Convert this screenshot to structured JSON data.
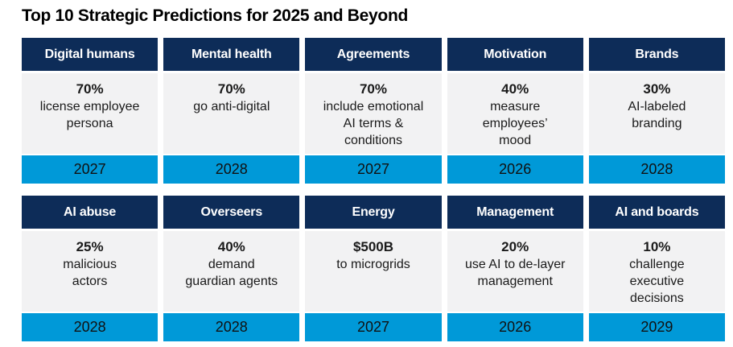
{
  "title": "Top 10 Strategic Predictions for 2025 and Beyond",
  "colors": {
    "header_bg": "#0d2c58",
    "header_text": "#ffffff",
    "body_bg": "#f2f2f3",
    "body_text": "#1a1a1a",
    "year_bg": "#0099d8"
  },
  "cards": [
    {
      "category": "Digital humans",
      "stat": "70%",
      "description": "license employee\npersona",
      "year": "2027"
    },
    {
      "category": "Mental health",
      "stat": "70%",
      "description": "go anti-digital",
      "year": "2028"
    },
    {
      "category": "Agreements",
      "stat": "70%",
      "description": "include emotional\nAI terms &\nconditions",
      "year": "2027"
    },
    {
      "category": "Motivation",
      "stat": "40%",
      "description": "measure\nemployees’\nmood",
      "year": "2026"
    },
    {
      "category": "Brands",
      "stat": "30%",
      "description": "AI-labeled\nbranding",
      "year": "2028"
    },
    {
      "category": "AI abuse",
      "stat": "25%",
      "description": "malicious\nactors",
      "year": "2028"
    },
    {
      "category": "Overseers",
      "stat": "40%",
      "description": "demand\nguardian agents",
      "year": "2028"
    },
    {
      "category": "Energy",
      "stat": "$500B",
      "description": "to microgrids",
      "year": "2027"
    },
    {
      "category": "Management",
      "stat": "20%",
      "description": "use AI to de-layer\nmanagement",
      "year": "2026"
    },
    {
      "category": "AI and boards",
      "stat": "10%",
      "description": "challenge\nexecutive\ndecisions",
      "year": "2029"
    }
  ]
}
